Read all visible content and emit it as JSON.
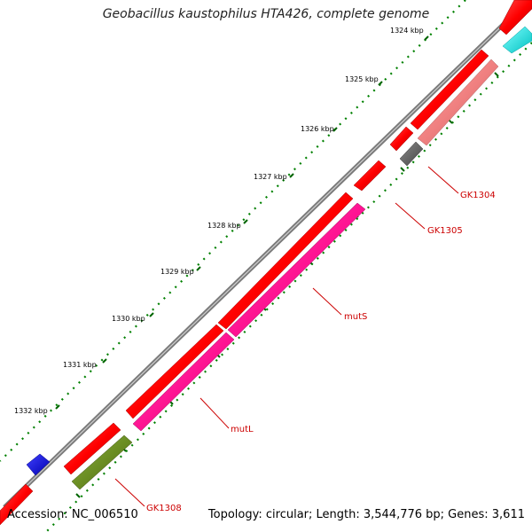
{
  "title": "Geobacillus kaustophilus HTA426, complete genome",
  "footer": {
    "accession": "Accession: NC_006510",
    "summary": "Topology: circular; Length: 3,544,776 bp; Genes: 3,611"
  },
  "scale_labels": [
    "1324 kbp",
    "1325 kbp",
    "1326 kbp",
    "1327 kbp",
    "1328 kbp",
    "1329 kbp",
    "1330 kbp",
    "1331 kbp",
    "1332 kbp"
  ],
  "gene_labels": [
    "GK1304",
    "GK1305",
    "mutS",
    "mutL",
    "GK1308"
  ],
  "colors": {
    "gene_red": "#ff0000",
    "gene_pink_light": "#f08080",
    "gene_magenta": "#ff1493",
    "gene_olive": "#6b8e23",
    "gene_gray": "#666666",
    "gene_cyan": "#00ffff",
    "gene_blue": "#0000ff",
    "backbone": "#888888",
    "tick_green": "#006400",
    "label_red": "#cc0000"
  }
}
